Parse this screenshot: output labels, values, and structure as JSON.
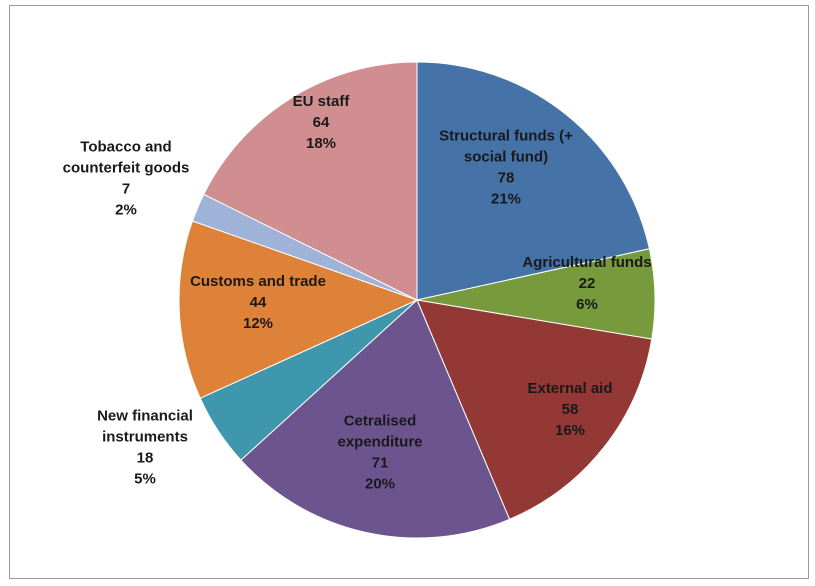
{
  "chart_data": {
    "type": "pie",
    "title": "",
    "slices": [
      {
        "label": [
          "Structural funds (+",
          "social fund)"
        ],
        "value": 78,
        "percent": "21%",
        "color": "#4572a7"
      },
      {
        "label": [
          "Agricultural funds"
        ],
        "value": 22,
        "percent": "6%",
        "color": "#769a3c"
      },
      {
        "label": [
          "External aid"
        ],
        "value": 58,
        "percent": "16%",
        "color": "#933835"
      },
      {
        "label": [
          "Cetralised",
          "expenditure"
        ],
        "value": 71,
        "percent": "20%",
        "color": "#6c548f"
      },
      {
        "label": [
          "New financial",
          "instruments"
        ],
        "value": 18,
        "percent": "5%",
        "color": "#3e97ad"
      },
      {
        "label": [
          "Customs and trade"
        ],
        "value": 44,
        "percent": "12%",
        "color": "#dd8238"
      },
      {
        "label": [
          "Tobacco and",
          "counterfeit goods"
        ],
        "value": 7,
        "percent": "2%",
        "color": "#9fb3d8"
      },
      {
        "label": [
          "EU staff"
        ],
        "value": 64,
        "percent": "18%",
        "color": "#d18e90"
      }
    ]
  }
}
